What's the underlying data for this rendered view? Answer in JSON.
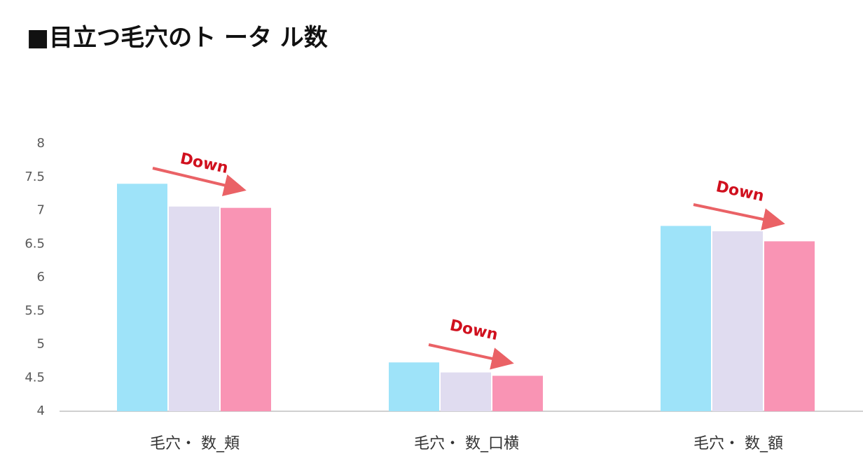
{
  "chart_data": {
    "type": "bar",
    "title": "■目立つ毛穴のト ータ ル数",
    "categories": [
      "毛穴・ 数_頬",
      "毛穴・ 数_口横",
      "毛穴・ 数_額"
    ],
    "series": [
      {
        "color": "#9ee3f9",
        "values": [
          7.4,
          4.73,
          6.77
        ]
      },
      {
        "color": "#e0dcf0",
        "values": [
          7.06,
          4.58,
          6.69
        ]
      },
      {
        "color": "#f994b4",
        "values": [
          7.04,
          4.53,
          6.54
        ]
      }
    ],
    "annotations": [
      "Down",
      "Down",
      "Down"
    ],
    "ylim": [
      4,
      8
    ],
    "yticks": [
      4,
      4.5,
      5,
      5.5,
      6,
      6.5,
      7,
      7.5,
      8
    ],
    "grid": false
  }
}
